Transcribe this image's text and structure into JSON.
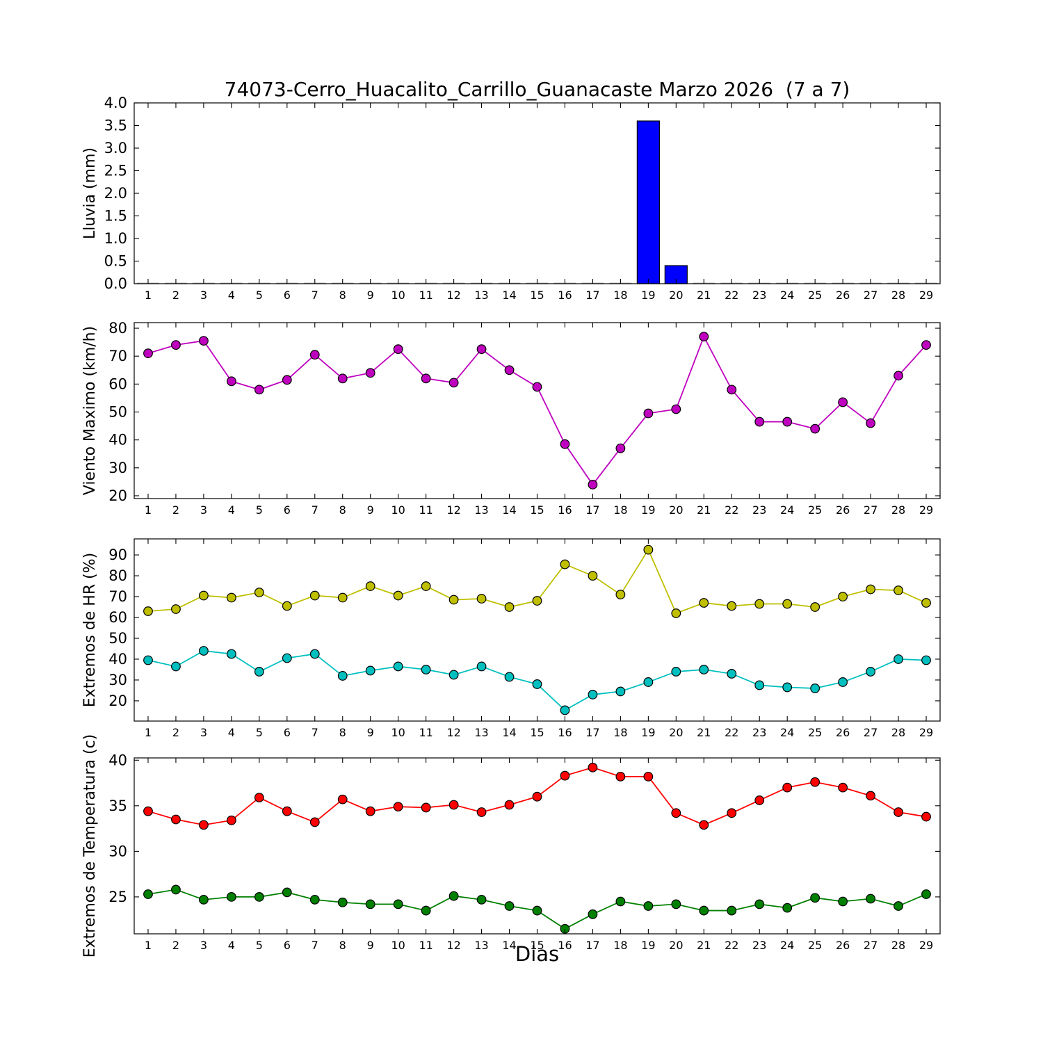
{
  "figure": {
    "title": "74073-Cerro_Huacalito_Carrillo_Guanacaste Marzo 2026  (7 a 7)",
    "xlabel": "Dias",
    "background_color": "#ffffff",
    "axes_color": "#000000"
  },
  "chart_data": [
    {
      "type": "bar",
      "name": "lluvia",
      "ylabel": "Lluvia (mm)",
      "xlabel": "",
      "categories": [
        1,
        2,
        3,
        4,
        5,
        6,
        7,
        8,
        9,
        10,
        11,
        12,
        13,
        14,
        15,
        16,
        17,
        18,
        19,
        20,
        21,
        22,
        23,
        24,
        25,
        26,
        27,
        28,
        29
      ],
      "values": [
        0,
        0,
        0,
        0,
        0,
        0,
        0,
        0,
        0,
        0,
        0,
        0,
        0,
        0,
        0,
        0,
        0,
        0,
        3.6,
        0.4,
        0,
        0,
        0,
        0,
        0,
        0,
        0,
        0,
        0
      ],
      "bar_color": "#0000ff",
      "grid": false,
      "legend": "none",
      "ylim": [
        0,
        4
      ],
      "yticks": [
        0,
        0.5,
        1,
        1.5,
        2,
        2.5,
        3,
        3.5,
        4
      ],
      "ytick_labels": [
        "0.0",
        "0.5",
        "1.0",
        "1.5",
        "2.0",
        "2.5",
        "3.0",
        "3.5",
        "4.0"
      ]
    },
    {
      "type": "line",
      "name": "viento-maximo",
      "ylabel": "Viento Maximo (km/h)",
      "xlabel": "",
      "categories": [
        1,
        2,
        3,
        4,
        5,
        6,
        7,
        8,
        9,
        10,
        11,
        12,
        13,
        14,
        15,
        16,
        17,
        18,
        19,
        20,
        21,
        22,
        23,
        24,
        25,
        26,
        27,
        28,
        29
      ],
      "series": [
        {
          "name": "viento_maximo",
          "color": "#bf00bf",
          "values": [
            71,
            74,
            75.5,
            61,
            58,
            61.5,
            70.5,
            62,
            64,
            72.5,
            62,
            60.5,
            72.5,
            65,
            59,
            38.5,
            24,
            37,
            49.5,
            51,
            77,
            58,
            46.5,
            46.5,
            44,
            53.5,
            46,
            63,
            74
          ]
        }
      ],
      "grid": false,
      "legend": "none",
      "ylim": [
        19,
        82
      ],
      "yticks": [
        20,
        30,
        40,
        50,
        60,
        70,
        80
      ],
      "ytick_labels": [
        "20",
        "30",
        "40",
        "50",
        "60",
        "70",
        "80"
      ]
    },
    {
      "type": "line",
      "name": "extremos-hr",
      "ylabel": "Extremos de HR (%)",
      "xlabel": "",
      "categories": [
        1,
        2,
        3,
        4,
        5,
        6,
        7,
        8,
        9,
        10,
        11,
        12,
        13,
        14,
        15,
        16,
        17,
        18,
        19,
        20,
        21,
        22,
        23,
        24,
        25,
        26,
        27,
        28,
        29
      ],
      "series": [
        {
          "name": "hr_maxima",
          "color": "#bfbf00",
          "values": [
            63,
            64,
            70.5,
            69.5,
            72,
            65.5,
            70.5,
            69.5,
            75,
            70.5,
            75,
            68.5,
            69,
            65,
            68,
            85.5,
            80,
            71,
            92.5,
            62,
            67,
            65.5,
            66.5,
            66.5,
            65,
            70,
            73.5,
            73,
            67
          ]
        },
        {
          "name": "hr_minima",
          "color": "#00bfbf",
          "values": [
            39.5,
            36.5,
            44,
            42.5,
            34,
            40.5,
            42.5,
            32,
            34.5,
            36.5,
            35,
            32.5,
            36.5,
            31.5,
            28,
            15.5,
            23,
            24.5,
            29,
            34,
            35,
            33,
            27.5,
            26.5,
            26,
            29,
            34,
            40,
            39.5
          ]
        }
      ],
      "grid": false,
      "legend": "none",
      "ylim": [
        10.3,
        97.7
      ],
      "yticks": [
        20,
        30,
        40,
        50,
        60,
        70,
        80,
        90
      ],
      "ytick_labels": [
        "20",
        "30",
        "40",
        "50",
        "60",
        "70",
        "80",
        "90"
      ]
    },
    {
      "type": "line",
      "name": "extremos-temperatura",
      "ylabel": "Extremos de Temperatura (c)",
      "xlabel": "Dias",
      "categories": [
        1,
        2,
        3,
        4,
        5,
        6,
        7,
        8,
        9,
        10,
        11,
        12,
        13,
        14,
        15,
        16,
        17,
        18,
        19,
        20,
        21,
        22,
        23,
        24,
        25,
        26,
        27,
        28,
        29
      ],
      "series": [
        {
          "name": "temperatura_maxima",
          "color": "#ff0000",
          "values": [
            34.4,
            33.5,
            32.9,
            33.4,
            35.9,
            34.4,
            33.2,
            35.7,
            34.4,
            34.9,
            34.8,
            35.1,
            34.3,
            35.1,
            36,
            38.3,
            39.2,
            38.2,
            38.2,
            34.2,
            32.9,
            34.2,
            35.6,
            37,
            37.6,
            37,
            36.1,
            34.3,
            33.8
          ]
        },
        {
          "name": "temperatura_minima",
          "color": "#008000",
          "values": [
            25.3,
            25.8,
            24.7,
            25,
            25,
            25.5,
            24.7,
            24.4,
            24.2,
            24.2,
            23.5,
            25.1,
            24.7,
            24,
            23.5,
            21.5,
            23.1,
            24.5,
            24,
            24.2,
            23.5,
            23.5,
            24.2,
            23.8,
            24.9,
            24.5,
            24.8,
            24,
            25.3
          ]
        }
      ],
      "grid": false,
      "legend": "none",
      "ylim": [
        20.95,
        40.25
      ],
      "yticks": [
        25,
        30,
        35,
        40
      ],
      "ytick_labels": [
        "25",
        "30",
        "35",
        "40"
      ]
    }
  ]
}
